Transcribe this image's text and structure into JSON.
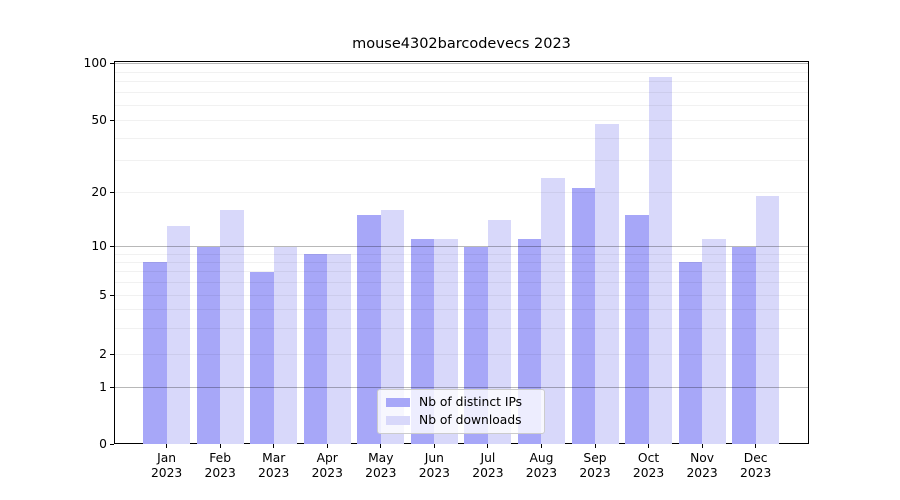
{
  "chart_data": {
    "type": "bar",
    "title": "mouse4302barcodevecs 2023",
    "categories": [
      "Jan 2023",
      "Feb 2023",
      "Mar 2023",
      "Apr 2023",
      "May 2023",
      "Jun 2023",
      "Jul 2023",
      "Aug 2023",
      "Sep 2023",
      "Oct 2023",
      "Nov 2023",
      "Dec 2023"
    ],
    "series": [
      {
        "name": "Nb of distinct IPs",
        "color": "#a7a7f8",
        "values": [
          8,
          10,
          7,
          9,
          15,
          11,
          10,
          11,
          21,
          15,
          8,
          10
        ]
      },
      {
        "name": "Nb of downloads",
        "color": "#d8d8fa",
        "values": [
          13,
          16,
          10,
          9,
          16,
          11,
          14,
          24,
          48,
          85,
          11,
          19
        ]
      }
    ],
    "yscale": "symlog",
    "ylim": [
      0,
      100
    ],
    "ytick_labels": [
      "100",
      "50",
      "20",
      "10",
      "5",
      "2",
      "1",
      "0"
    ],
    "ytick_values": [
      100,
      50,
      20,
      10,
      5,
      2,
      1,
      0
    ],
    "grid_major_values": [
      1,
      10,
      100
    ],
    "grid_minor_values": [
      2,
      3,
      4,
      5,
      6,
      7,
      8,
      9,
      20,
      30,
      40,
      50,
      60,
      70,
      80,
      90
    ],
    "grid": true,
    "legend_position": "lower center"
  },
  "legend": {
    "items": [
      {
        "label": "Nb of distinct IPs",
        "color": "#a7a7f8"
      },
      {
        "label": "Nb of downloads",
        "color": "#d8d8fa"
      }
    ]
  }
}
